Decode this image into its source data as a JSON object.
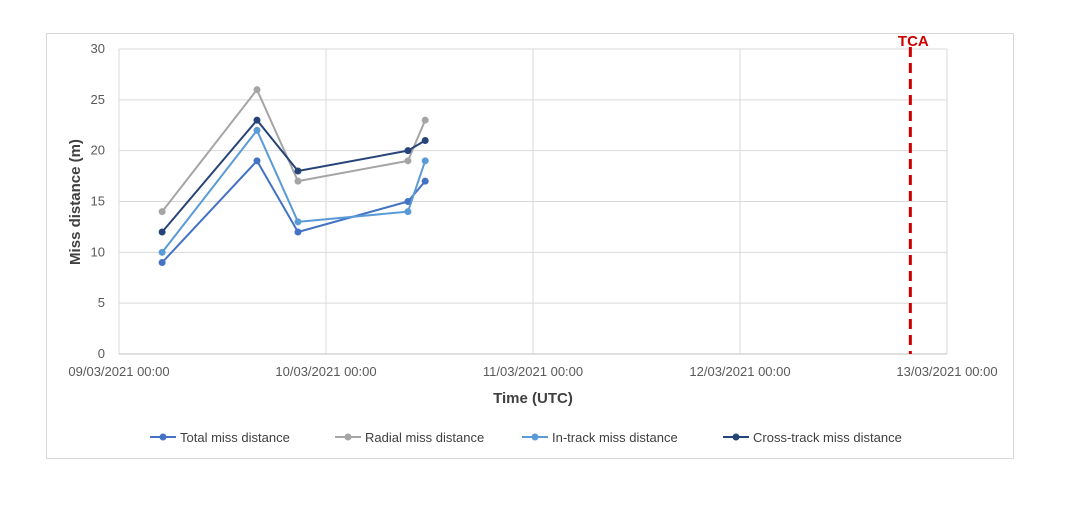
{
  "chart_data": {
    "type": "line",
    "title": "",
    "xlabel": "Time (UTC)",
    "ylabel": "Miss distance (m)",
    "x_ticks": [
      "09/03/2021 00:00",
      "10/03/2021 00:00",
      "11/03/2021 00:00",
      "12/03/2021 00:00",
      "13/03/2021 00:00"
    ],
    "y_ticks": [
      "0",
      "5",
      "10",
      "15",
      "20",
      "25",
      "30"
    ],
    "xlim": [
      "09/03/2021 00:00",
      "13/03/2021 00:00"
    ],
    "ylim": [
      0,
      30
    ],
    "grid": true,
    "legend_position": "bottom",
    "series": [
      {
        "name": "Total miss distance",
        "color": "#4472c4",
        "x": [
          "09/03/2021 05:00",
          "09/03/2021 16:00",
          "09/03/2021 20:45",
          "10/03/2021 09:30",
          "10/03/2021 11:30"
        ],
        "values": [
          9,
          19,
          12,
          15,
          17
        ]
      },
      {
        "name": "Radial miss distance",
        "color": "#a5a5a5",
        "x": [
          "09/03/2021 05:00",
          "09/03/2021 16:00",
          "09/03/2021 20:45",
          "10/03/2021 09:30",
          "10/03/2021 11:30"
        ],
        "values": [
          14,
          26,
          17,
          19,
          23
        ]
      },
      {
        "name": "In-track miss distance",
        "color": "#5b9bd5",
        "x": [
          "09/03/2021 05:00",
          "09/03/2021 16:00",
          "09/03/2021 20:45",
          "10/03/2021 09:30",
          "10/03/2021 11:30"
        ],
        "values": [
          10,
          22,
          13,
          14,
          19
        ]
      },
      {
        "name": "Cross-track miss distance",
        "color": "#264478",
        "x": [
          "09/03/2021 05:00",
          "09/03/2021 16:00",
          "09/03/2021 20:45",
          "10/03/2021 09:30",
          "10/03/2021 11:30"
        ],
        "values": [
          12,
          23,
          18,
          20,
          21
        ]
      }
    ],
    "annotations": [
      {
        "label": "TCA",
        "x": "12/03/2021 19:45",
        "style": "dashed-vertical",
        "color": "#cc0000"
      }
    ]
  }
}
